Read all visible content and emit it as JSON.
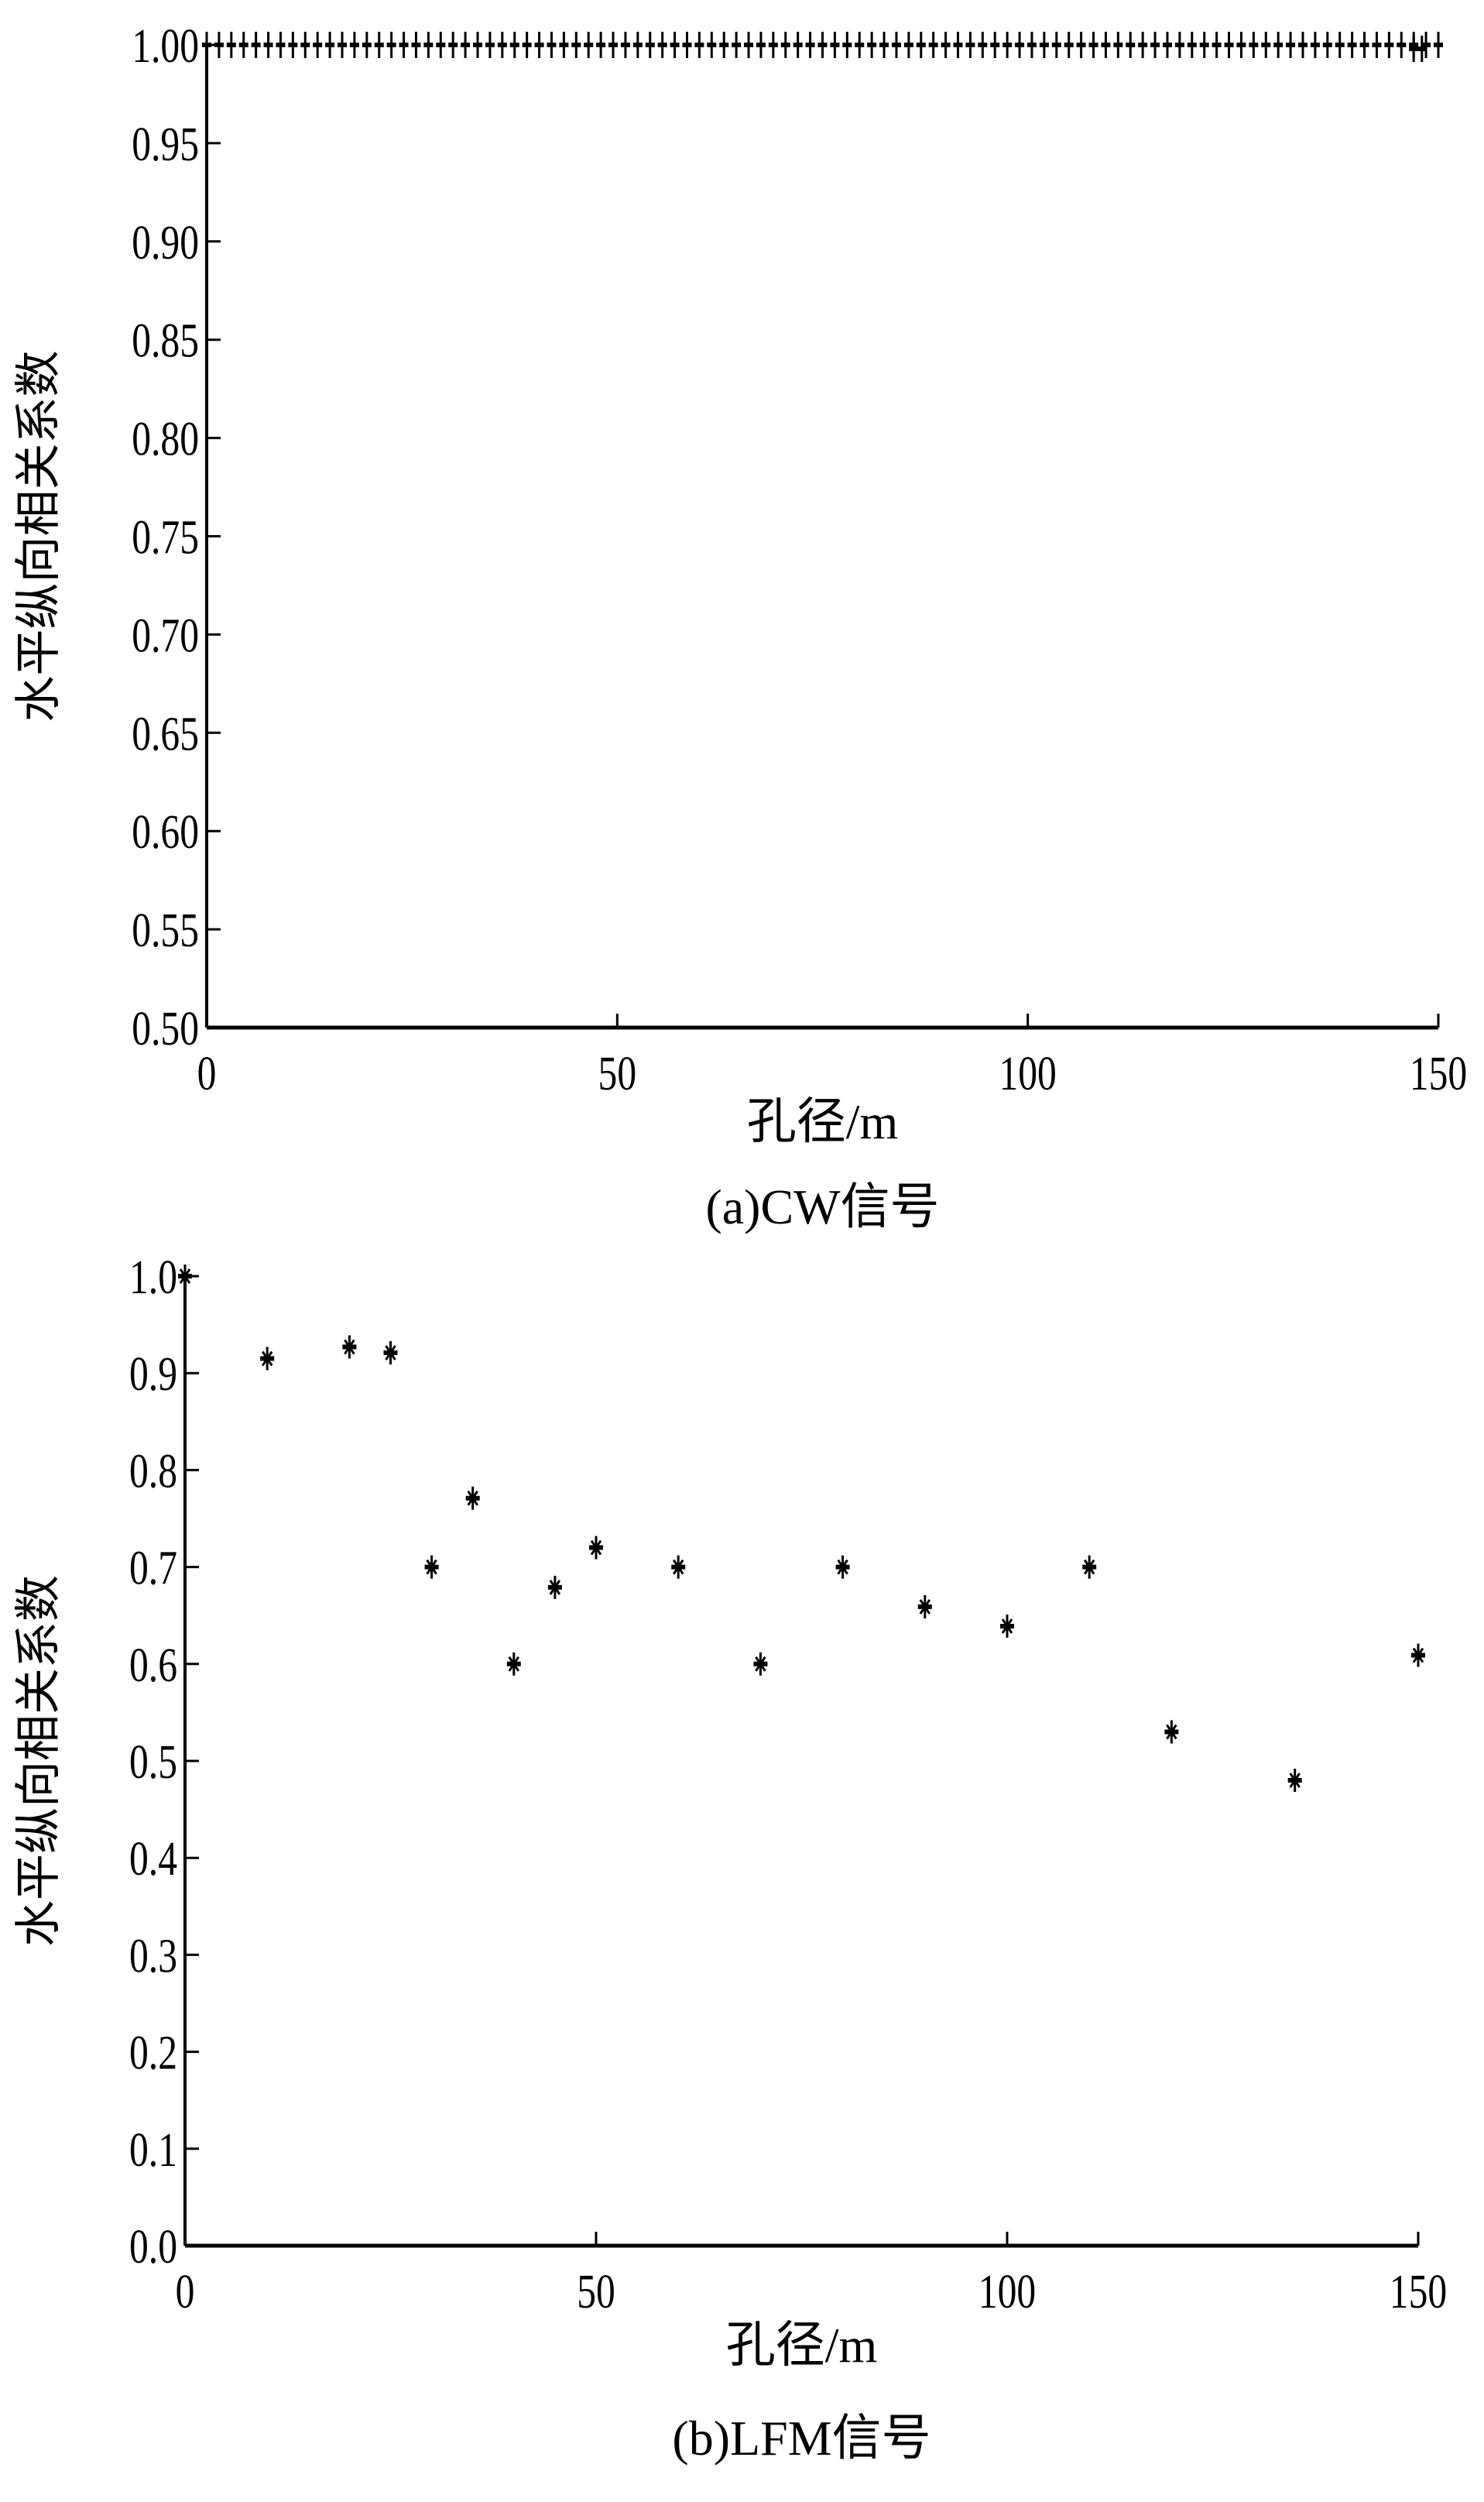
{
  "chart_data": [
    {
      "type": "scatter",
      "marker": "plus",
      "caption": "(a)CW信号",
      "xlabel": "孔径/m",
      "ylabel": "水平纵向相关系数",
      "xlim": [
        0,
        150
      ],
      "ylim": [
        0.5,
        1.0
      ],
      "xticks": [
        "0",
        "50",
        "100",
        "150"
      ],
      "yticks": [
        "0.50",
        "0.55",
        "0.60",
        "0.65",
        "0.70",
        "0.75",
        "0.80",
        "0.85",
        "0.90",
        "0.95",
        "1.00"
      ],
      "x_start": 0,
      "x_step": 1.5,
      "x_end": 150,
      "y_value": 1.0,
      "tail_values": [
        {
          "x": 147,
          "y": 0.998
        },
        {
          "x": 148,
          "y": 0.998
        }
      ],
      "grid": false,
      "color": "#000000"
    },
    {
      "type": "scatter",
      "marker": "asterisk",
      "caption": "(b)LFM信号",
      "xlabel": "孔径/m",
      "ylabel": "水平纵向相关系数",
      "xlim": [
        0,
        150
      ],
      "ylim": [
        0.0,
        1.0
      ],
      "xticks": [
        "0",
        "50",
        "100",
        "150"
      ],
      "yticks": [
        "0.0",
        "0.1",
        "0.2",
        "0.3",
        "0.4",
        "0.5",
        "0.6",
        "0.7",
        "0.8",
        "0.9",
        "1.0"
      ],
      "x": [
        0,
        10,
        20,
        25,
        30,
        35,
        40,
        45,
        50,
        60,
        70,
        80,
        90,
        100,
        110,
        120,
        135,
        150
      ],
      "y": [
        1.0,
        0.915,
        0.927,
        0.921,
        0.7,
        0.771,
        0.6,
        0.679,
        0.72,
        0.7,
        0.6,
        0.7,
        0.659,
        0.639,
        0.7,
        0.53,
        0.48,
        0.609
      ],
      "grid": false,
      "color": "#000000"
    }
  ]
}
